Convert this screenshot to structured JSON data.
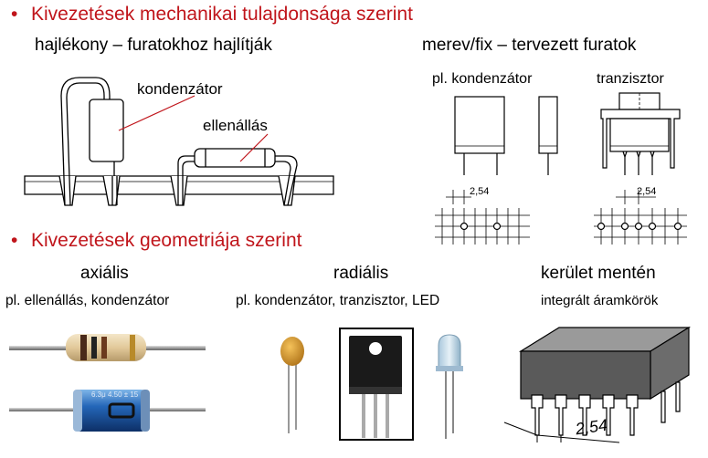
{
  "section1": {
    "bullet": "•",
    "title": "Kivezetések mechanikai tulajdonsága szerint",
    "left_heading": "hajlékony – furatokhoz hajlítják",
    "right_heading": "merev/fix – tervezett furatok",
    "label_capacitor": "kondenzátor",
    "label_resistor": "ellenállás",
    "label_pl_capacitor": "pl. kondenzátor",
    "label_transistor": "tranzisztor",
    "pitch_left": "2,54",
    "pitch_right": "2,54"
  },
  "section2": {
    "bullet": "•",
    "title": "Kivezetések geometriája szerint",
    "col1_heading": "axiális",
    "col2_heading": "radiális",
    "col3_heading": "kerület mentén",
    "col1_examples": "pl. ellenállás, kondenzátor",
    "col2_examples": "pl. kondenzátor, tranzisztor, LED",
    "col3_examples": "integrált áramkörök",
    "capacitor_marking": "6.3μ 4.50 ± 15",
    "ic_pitch": "2,54"
  },
  "colors": {
    "title_red": "#c0151b",
    "line": "#000000",
    "leader_red": "#c0151b"
  }
}
